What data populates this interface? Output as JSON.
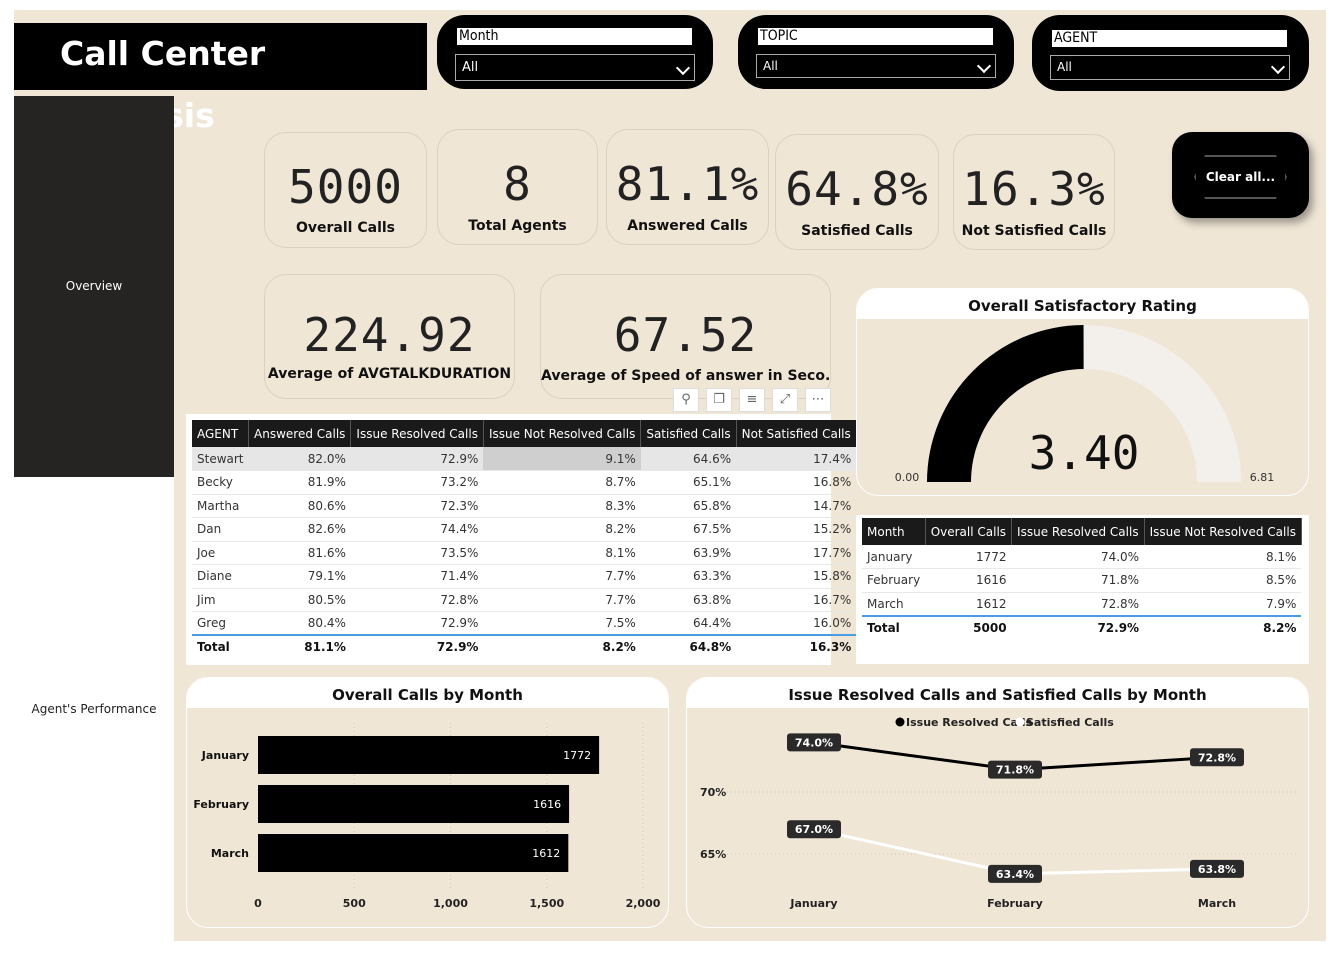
{
  "title": "Call Center Analysis",
  "nav": {
    "overview": "Overview",
    "agents": "Agent's Performance"
  },
  "slicers": {
    "month": {
      "title": "Month",
      "value": "All"
    },
    "topic": {
      "title": "TOPIC",
      "value": "All"
    },
    "agent": {
      "title": "AGENT",
      "value": "All"
    }
  },
  "clear_label": "Clear all...",
  "kpis": {
    "overall_calls": {
      "value": "5000",
      "label": "Overall Calls"
    },
    "total_agents": {
      "value": "8",
      "label": "Total Agents"
    },
    "answered": {
      "value": "81.1%",
      "label": "Answered Calls"
    },
    "satisfied": {
      "value": "64.8%",
      "label": "Satisfied Calls"
    },
    "not_satisfied": {
      "value": "16.3%",
      "label": "Not Satisfied Calls"
    },
    "avg_talk": {
      "value": "224.92",
      "label": "Average of AVGTALKDURATION"
    },
    "avg_speed": {
      "value": "67.52",
      "label": "Average of Speed of answer in Seco..."
    }
  },
  "gauge": {
    "title": "Overall Satisfactory Rating",
    "value": 3.4,
    "value_label": "3.40",
    "min": 0.0,
    "min_label": "0.00",
    "max": 6.81,
    "max_label": "6.81"
  },
  "agent_table": {
    "headers": [
      "AGENT",
      "Answered Calls",
      "Issue Resolved Calls",
      "Issue Not Resolved Calls",
      "Satisfied Calls",
      "Not Satisfied Calls"
    ],
    "rows": [
      [
        "Stewart",
        "82.0%",
        "72.9%",
        "9.1%",
        "64.6%",
        "17.4%"
      ],
      [
        "Becky",
        "81.9%",
        "73.2%",
        "8.7%",
        "65.1%",
        "16.8%"
      ],
      [
        "Martha",
        "80.6%",
        "72.3%",
        "8.3%",
        "65.8%",
        "14.7%"
      ],
      [
        "Dan",
        "82.6%",
        "74.4%",
        "8.2%",
        "67.5%",
        "15.2%"
      ],
      [
        "Joe",
        "81.6%",
        "73.5%",
        "8.1%",
        "63.9%",
        "17.7%"
      ],
      [
        "Diane",
        "79.1%",
        "71.4%",
        "7.7%",
        "63.3%",
        "15.8%"
      ],
      [
        "Jim",
        "80.5%",
        "72.8%",
        "7.7%",
        "63.8%",
        "16.7%"
      ],
      [
        "Greg",
        "80.4%",
        "72.9%",
        "7.5%",
        "64.4%",
        "16.0%"
      ]
    ],
    "total": [
      "Total",
      "81.1%",
      "72.9%",
      "8.2%",
      "64.8%",
      "16.3%"
    ]
  },
  "month_table": {
    "headers": [
      "Month",
      "Overall Calls",
      "Issue Resolved Calls",
      "Issue Not Resolved Calls"
    ],
    "rows": [
      [
        "January",
        "1772",
        "74.0%",
        "8.1%"
      ],
      [
        "February",
        "1616",
        "71.8%",
        "8.5%"
      ],
      [
        "March",
        "1612",
        "72.8%",
        "7.9%"
      ]
    ],
    "total": [
      "Total",
      "5000",
      "72.9%",
      "8.2%"
    ]
  },
  "chart_data": [
    {
      "type": "bar",
      "orientation": "horizontal",
      "title": "Overall Calls by Month",
      "categories": [
        "January",
        "February",
        "March"
      ],
      "values": [
        1772,
        1616,
        1612
      ],
      "xlim": [
        0,
        2000
      ],
      "xticks": [
        "0",
        "500",
        "1,000",
        "1,500",
        "2,000"
      ],
      "color": "#000000"
    },
    {
      "type": "line",
      "title": "Issue Resolved Calls and Satisfied Calls by Month",
      "categories": [
        "January",
        "February",
        "March"
      ],
      "series": [
        {
          "name": "Issue Resolved Calls",
          "values": [
            74.0,
            71.8,
            72.8
          ],
          "labels": [
            "74.0%",
            "71.8%",
            "72.8%"
          ],
          "color": "#000000"
        },
        {
          "name": "Satisfied Calls",
          "values": [
            67.0,
            63.4,
            63.8
          ],
          "labels": [
            "67.0%",
            "63.4%",
            "63.8%"
          ],
          "color": "#ffffff"
        }
      ],
      "yticks": [
        "70%",
        "65%"
      ],
      "legend": "top-center"
    }
  ]
}
